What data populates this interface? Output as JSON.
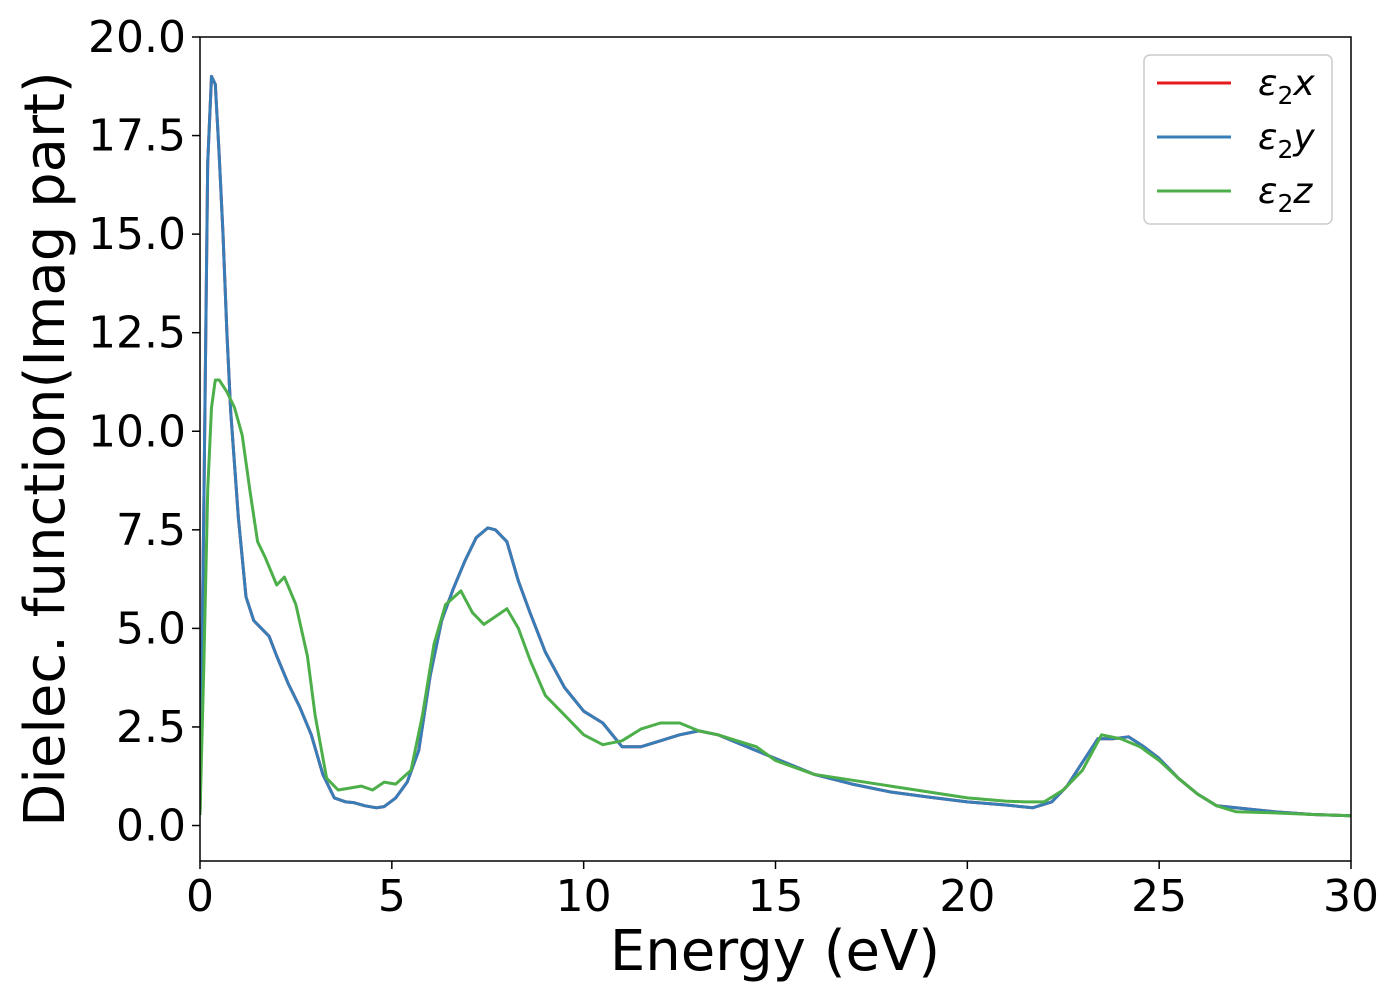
{
  "chart_data": {
    "type": "line",
    "title": "",
    "xlabel": "Energy (eV)",
    "ylabel": "Dielec. function(Imag part)",
    "xlim": [
      0,
      30
    ],
    "ylim": [
      -0.9,
      20.0
    ],
    "xticks": [
      0,
      5,
      10,
      15,
      20,
      25,
      30
    ],
    "xtick_labels": [
      "0",
      "5",
      "10",
      "15",
      "20",
      "25",
      "30"
    ],
    "yticks": [
      0.0,
      2.5,
      5.0,
      7.5,
      10.0,
      12.5,
      15.0,
      17.5,
      20.0
    ],
    "ytick_labels": [
      "0.0",
      "2.5",
      "5.0",
      "7.5",
      "10.0",
      "12.5",
      "15.0",
      "17.5",
      "20.0"
    ],
    "grid": false,
    "legend_position": "top-right",
    "series": [
      {
        "name_base": "ε",
        "name_sub": "2",
        "name_suffix": "x",
        "color": "#e41a1c",
        "x": [
          0,
          0.1,
          0.2,
          0.3,
          0.4,
          0.5,
          0.6,
          0.7,
          0.8,
          1.0,
          1.2,
          1.4,
          1.6,
          1.8,
          2.0,
          2.3,
          2.6,
          2.9,
          3.2,
          3.5,
          3.8,
          4.0,
          4.3,
          4.6,
          4.8,
          5.1,
          5.4,
          5.7,
          6.0,
          6.3,
          6.6,
          6.9,
          7.2,
          7.5,
          7.7,
          8.0,
          8.3,
          8.6,
          9.0,
          9.5,
          10.0,
          10.5,
          11.0,
          11.5,
          12.0,
          12.5,
          13.0,
          13.5,
          14.0,
          15.0,
          16.0,
          17.0,
          18.0,
          19.0,
          20.0,
          21.0,
          21.7,
          22.2,
          22.6,
          23.0,
          23.4,
          23.8,
          24.2,
          24.6,
          25.0,
          25.5,
          26.0,
          26.5,
          27.0,
          28.0,
          29.0,
          30.0
        ],
        "values": [
          0.3,
          8.0,
          16.8,
          19.0,
          18.8,
          17.0,
          15.0,
          12.5,
          10.5,
          7.8,
          5.8,
          5.2,
          5.0,
          4.8,
          4.3,
          3.6,
          3.0,
          2.3,
          1.3,
          0.7,
          0.6,
          0.58,
          0.5,
          0.45,
          0.48,
          0.7,
          1.1,
          1.9,
          3.8,
          5.2,
          6.0,
          6.7,
          7.3,
          7.55,
          7.5,
          7.2,
          6.2,
          5.4,
          4.4,
          3.5,
          2.9,
          2.6,
          2.0,
          2.0,
          2.15,
          2.3,
          2.4,
          2.3,
          2.1,
          1.7,
          1.3,
          1.05,
          0.85,
          0.72,
          0.6,
          0.52,
          0.45,
          0.6,
          1.0,
          1.6,
          2.2,
          2.2,
          2.25,
          2.0,
          1.7,
          1.2,
          0.8,
          0.5,
          0.45,
          0.35,
          0.28,
          0.25
        ]
      },
      {
        "name_base": "ε",
        "name_sub": "2",
        "name_suffix": "y",
        "color": "#377eb8",
        "x": [
          0,
          0.1,
          0.2,
          0.3,
          0.4,
          0.5,
          0.6,
          0.7,
          0.8,
          1.0,
          1.2,
          1.4,
          1.6,
          1.8,
          2.0,
          2.3,
          2.6,
          2.9,
          3.2,
          3.5,
          3.8,
          4.0,
          4.3,
          4.6,
          4.8,
          5.1,
          5.4,
          5.7,
          6.0,
          6.3,
          6.6,
          6.9,
          7.2,
          7.5,
          7.7,
          8.0,
          8.3,
          8.6,
          9.0,
          9.5,
          10.0,
          10.5,
          11.0,
          11.5,
          12.0,
          12.5,
          13.0,
          13.5,
          14.0,
          15.0,
          16.0,
          17.0,
          18.0,
          19.0,
          20.0,
          21.0,
          21.7,
          22.2,
          22.6,
          23.0,
          23.4,
          23.8,
          24.2,
          24.6,
          25.0,
          25.5,
          26.0,
          26.5,
          27.0,
          28.0,
          29.0,
          30.0
        ],
        "values": [
          0.3,
          8.0,
          16.8,
          19.0,
          18.8,
          17.0,
          15.0,
          12.5,
          10.5,
          7.8,
          5.8,
          5.2,
          5.0,
          4.8,
          4.3,
          3.6,
          3.0,
          2.3,
          1.3,
          0.7,
          0.6,
          0.58,
          0.5,
          0.45,
          0.48,
          0.7,
          1.1,
          1.9,
          3.8,
          5.2,
          6.0,
          6.7,
          7.3,
          7.55,
          7.5,
          7.2,
          6.2,
          5.4,
          4.4,
          3.5,
          2.9,
          2.6,
          2.0,
          2.0,
          2.15,
          2.3,
          2.4,
          2.3,
          2.1,
          1.7,
          1.3,
          1.05,
          0.85,
          0.72,
          0.6,
          0.52,
          0.45,
          0.6,
          1.0,
          1.6,
          2.2,
          2.2,
          2.25,
          2.0,
          1.7,
          1.2,
          0.8,
          0.5,
          0.45,
          0.35,
          0.28,
          0.25
        ]
      },
      {
        "name_base": "ε",
        "name_sub": "2",
        "name_suffix": "z",
        "color": "#4daf4a",
        "x": [
          0,
          0.1,
          0.2,
          0.3,
          0.4,
          0.5,
          0.7,
          0.9,
          1.1,
          1.3,
          1.5,
          1.7,
          2.0,
          2.2,
          2.5,
          2.8,
          3.0,
          3.3,
          3.6,
          3.9,
          4.2,
          4.5,
          4.8,
          5.1,
          5.5,
          5.8,
          6.1,
          6.4,
          6.8,
          7.1,
          7.4,
          7.7,
          8.0,
          8.3,
          8.6,
          9.0,
          9.5,
          10.0,
          10.5,
          11.0,
          11.5,
          12.0,
          12.5,
          13.0,
          13.5,
          14.0,
          14.5,
          15.0,
          16.0,
          17.0,
          18.0,
          19.0,
          20.0,
          21.0,
          21.5,
          22.0,
          22.5,
          23.0,
          23.5,
          24.0,
          24.5,
          25.0,
          25.5,
          26.0,
          26.5,
          27.0,
          28.0,
          29.0,
          30.0
        ],
        "values": [
          0.3,
          4.0,
          8.5,
          10.6,
          11.3,
          11.3,
          11.0,
          10.6,
          9.9,
          8.5,
          7.2,
          6.8,
          6.1,
          6.3,
          5.6,
          4.3,
          2.8,
          1.2,
          0.9,
          0.95,
          1.0,
          0.9,
          1.1,
          1.05,
          1.4,
          2.8,
          4.6,
          5.6,
          5.95,
          5.4,
          5.1,
          5.3,
          5.5,
          5.0,
          4.2,
          3.3,
          2.8,
          2.3,
          2.05,
          2.15,
          2.45,
          2.6,
          2.6,
          2.4,
          2.3,
          2.15,
          2.0,
          1.65,
          1.3,
          1.15,
          1.0,
          0.85,
          0.7,
          0.62,
          0.6,
          0.6,
          0.9,
          1.4,
          2.3,
          2.2,
          2.0,
          1.65,
          1.2,
          0.8,
          0.5,
          0.35,
          0.32,
          0.28,
          0.25
        ]
      }
    ]
  }
}
